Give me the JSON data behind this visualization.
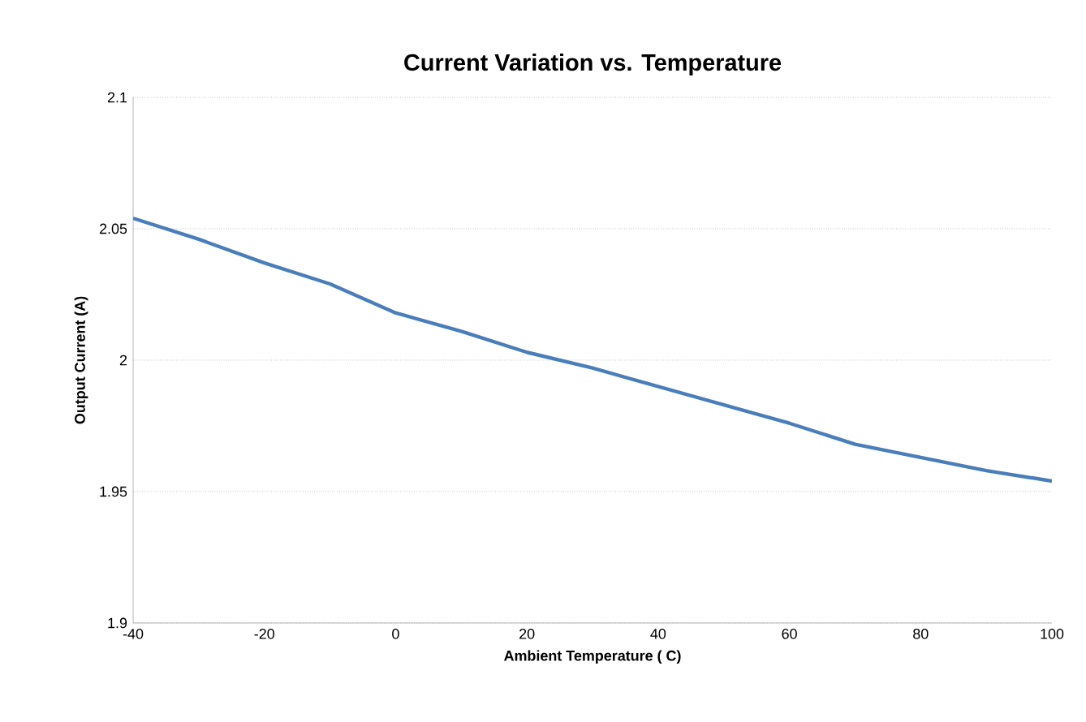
{
  "chart_data": {
    "type": "line",
    "title": "Current Variation vs. Temperature",
    "xlabel": "Ambient Temperature  ( C)",
    "ylabel": "Output Current  (A)",
    "x": [
      -40,
      -30,
      -20,
      -10,
      0,
      10,
      20,
      30,
      40,
      50,
      60,
      70,
      80,
      90,
      100
    ],
    "series": [
      {
        "color": "#4a7ebb",
        "values": [
          2.054,
          2.046,
          2.037,
          2.029,
          2.018,
          2.011,
          2.003,
          1.997,
          1.99,
          1.983,
          1.976,
          1.968,
          1.963,
          1.958,
          1.954
        ]
      }
    ],
    "xlim": [
      -40,
      100
    ],
    "xticks": [
      -40,
      -20,
      0,
      20,
      40,
      60,
      80,
      100
    ],
    "ylim": [
      1.9,
      2.1
    ],
    "yticks": [
      1.9,
      1.95,
      2,
      2.05,
      2.1
    ],
    "grid": "y",
    "marker": "none",
    "line_style": "solid"
  }
}
